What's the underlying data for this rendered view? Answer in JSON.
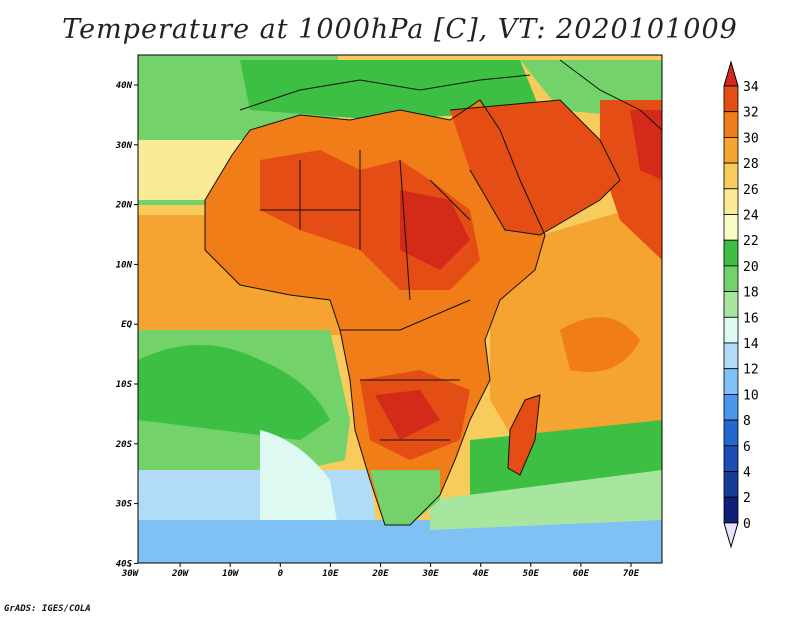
{
  "title": "Temperature at 1000hPa [C], VT: 2020101009",
  "credit": "GrADS: IGES/COLA",
  "map": {
    "lon_labels": [
      "30W",
      "20W",
      "10W",
      "0",
      "10E",
      "20E",
      "30E",
      "40E",
      "50E",
      "60E",
      "70E"
    ],
    "lat_labels": [
      "40N",
      "30N",
      "20N",
      "10N",
      "EQ",
      "10S",
      "20S",
      "30S",
      "40S"
    ]
  },
  "colorbar": {
    "labels": [
      "34",
      "32",
      "30",
      "28",
      "26",
      "24",
      "22",
      "20",
      "18",
      "16",
      "14",
      "12",
      "10",
      "8",
      "6",
      "4",
      "2",
      "0"
    ],
    "colors": [
      "#d42a1a",
      "#e44d13",
      "#f07d18",
      "#f5a431",
      "#f8cc5c",
      "#fbeb97",
      "#f9fcc4",
      "#3cbf42",
      "#73d36a",
      "#a8e6a0",
      "#def8f2",
      "#b0dcf8",
      "#7fc0f5",
      "#4b95ea",
      "#2368d0",
      "#1e4dba",
      "#173c98",
      "#102078",
      "#e9e3ff"
    ]
  },
  "colors": {
    "ocean_cool": "#7fc0f5",
    "ocean_warm": "#f5a431",
    "land_hot": "#d42a1a"
  }
}
